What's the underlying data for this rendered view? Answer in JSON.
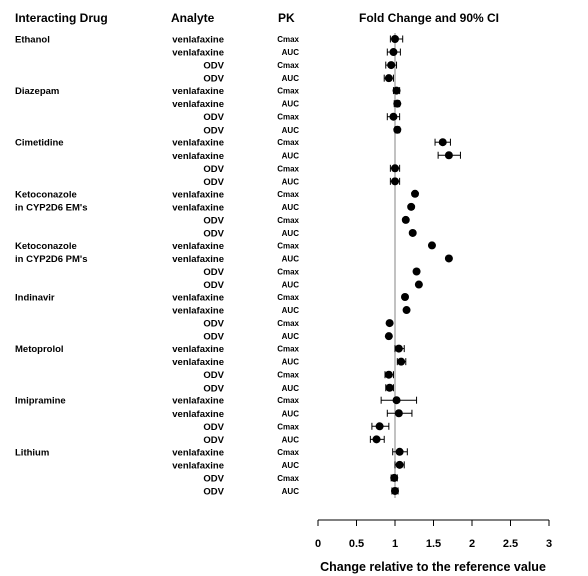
{
  "headers": {
    "drug": "Interacting Drug",
    "analyte": "Analyte",
    "pk": "PK",
    "chart": "Fold Change and 90% CI"
  },
  "chart_data": {
    "type": "scatter",
    "title": "Fold Change and 90% CI",
    "xlabel": "Change relative to the reference value",
    "xlim": [
      0,
      3
    ],
    "xticks": [
      0,
      0.5,
      1,
      1.5,
      2,
      2.5,
      3
    ],
    "xtick_labels": [
      "0",
      "0.5",
      "1",
      "1.5",
      "2",
      "2.5",
      "3"
    ],
    "reference_line": 1,
    "grid": false,
    "groups": [
      {
        "drug": "Ethanol",
        "rows": [
          {
            "analyte": "venlafaxine",
            "pk": "Cmax",
            "value": 1.0,
            "ci": [
              0.94,
              1.1
            ]
          },
          {
            "analyte": "venlafaxine",
            "pk": "AUC",
            "value": 0.98,
            "ci": [
              0.9,
              1.07
            ]
          },
          {
            "analyte": "ODV",
            "pk": "Cmax",
            "value": 0.95,
            "ci": [
              0.88,
              1.02
            ]
          },
          {
            "analyte": "ODV",
            "pk": "AUC",
            "value": 0.92,
            "ci": [
              0.86,
              0.98
            ]
          }
        ]
      },
      {
        "drug": "Diazepam",
        "rows": [
          {
            "analyte": "venlafaxine",
            "pk": "Cmax",
            "value": 1.02,
            "ci": [
              0.98,
              1.06
            ]
          },
          {
            "analyte": "venlafaxine",
            "pk": "AUC",
            "value": 1.03,
            "ci": [
              0.99,
              1.06
            ]
          },
          {
            "analyte": "ODV",
            "pk": "Cmax",
            "value": 0.98,
            "ci": [
              0.9,
              1.06
            ]
          },
          {
            "analyte": "ODV",
            "pk": "AUC",
            "value": 1.03,
            "ci": [
              1.0,
              1.06
            ]
          }
        ]
      },
      {
        "drug": "Cimetidine",
        "rows": [
          {
            "analyte": "venlafaxine",
            "pk": "Cmax",
            "value": 1.62,
            "ci": [
              1.52,
              1.72
            ]
          },
          {
            "analyte": "venlafaxine",
            "pk": "AUC",
            "value": 1.7,
            "ci": [
              1.56,
              1.85
            ]
          },
          {
            "analyte": "ODV",
            "pk": "Cmax",
            "value": 1.0,
            "ci": [
              0.94,
              1.06
            ]
          },
          {
            "analyte": "ODV",
            "pk": "AUC",
            "value": 1.0,
            "ci": [
              0.94,
              1.06
            ]
          }
        ]
      },
      {
        "drug": "Ketoconazole in CYP2D6 EM's",
        "drug_lines": [
          "Ketoconazole",
          "in CYP2D6 EM's"
        ],
        "rows": [
          {
            "analyte": "venlafaxine",
            "pk": "Cmax",
            "value": 1.26
          },
          {
            "analyte": "venlafaxine",
            "pk": "AUC",
            "value": 1.21
          },
          {
            "analyte": "ODV",
            "pk": "Cmax",
            "value": 1.14
          },
          {
            "analyte": "ODV",
            "pk": "AUC",
            "value": 1.23
          }
        ]
      },
      {
        "drug": "Ketoconazole in CYP2D6 PM's",
        "drug_lines": [
          "Ketoconazole",
          "in CYP2D6 PM's"
        ],
        "rows": [
          {
            "analyte": "venlafaxine",
            "pk": "Cmax",
            "value": 1.48
          },
          {
            "analyte": "venlafaxine",
            "pk": "AUC",
            "value": 1.7
          },
          {
            "analyte": "ODV",
            "pk": "Cmax",
            "value": 1.28
          },
          {
            "analyte": "ODV",
            "pk": "AUC",
            "value": 1.31
          }
        ]
      },
      {
        "drug": "Indinavir",
        "rows": [
          {
            "analyte": "venlafaxine",
            "pk": "Cmax",
            "value": 1.13
          },
          {
            "analyte": "venlafaxine",
            "pk": "AUC",
            "value": 1.15
          },
          {
            "analyte": "ODV",
            "pk": "Cmax",
            "value": 0.93
          },
          {
            "analyte": "ODV",
            "pk": "AUC",
            "value": 0.92
          }
        ]
      },
      {
        "drug": "Metoprolol",
        "rows": [
          {
            "analyte": "venlafaxine",
            "pk": "Cmax",
            "value": 1.05,
            "ci": [
              1.0,
              1.12
            ]
          },
          {
            "analyte": "venlafaxine",
            "pk": "AUC",
            "value": 1.08,
            "ci": [
              1.03,
              1.14
            ]
          },
          {
            "analyte": "ODV",
            "pk": "Cmax",
            "value": 0.92,
            "ci": [
              0.87,
              0.98
            ]
          },
          {
            "analyte": "ODV",
            "pk": "AUC",
            "value": 0.93,
            "ci": [
              0.88,
              0.98
            ]
          }
        ]
      },
      {
        "drug": "Imipramine",
        "rows": [
          {
            "analyte": "venlafaxine",
            "pk": "Cmax",
            "value": 1.02,
            "ci": [
              0.82,
              1.28
            ]
          },
          {
            "analyte": "venlafaxine",
            "pk": "AUC",
            "value": 1.05,
            "ci": [
              0.9,
              1.22
            ]
          },
          {
            "analyte": "ODV",
            "pk": "Cmax",
            "value": 0.8,
            "ci": [
              0.7,
              0.92
            ]
          },
          {
            "analyte": "ODV",
            "pk": "AUC",
            "value": 0.76,
            "ci": [
              0.68,
              0.86
            ]
          }
        ]
      },
      {
        "drug": "Lithium",
        "rows": [
          {
            "analyte": "venlafaxine",
            "pk": "Cmax",
            "value": 1.06,
            "ci": [
              0.97,
              1.16
            ]
          },
          {
            "analyte": "venlafaxine",
            "pk": "AUC",
            "value": 1.06,
            "ci": [
              1.0,
              1.12
            ]
          },
          {
            "analyte": "ODV",
            "pk": "Cmax",
            "value": 0.99,
            "ci": [
              0.95,
              1.03
            ]
          },
          {
            "analyte": "ODV",
            "pk": "AUC",
            "value": 1.0,
            "ci": [
              0.96,
              1.04
            ]
          }
        ]
      }
    ]
  }
}
